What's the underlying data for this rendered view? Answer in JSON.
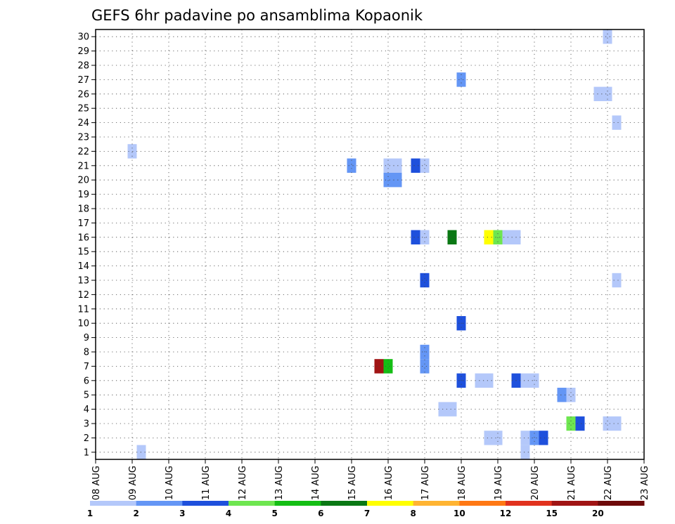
{
  "chart_data": {
    "type": "heatmap",
    "title": "GEFS 6hr padavine po ansamblima Kopaonik",
    "xlabel": "",
    "ylabel": "",
    "x_ticks": [
      "08 AUG",
      "09 AUG",
      "10 AUG",
      "11 AUG",
      "12 AUG",
      "13 AUG",
      "14 AUG",
      "15 AUG",
      "16 AUG",
      "17 AUG",
      "18 AUG",
      "19 AUG",
      "20 AUG",
      "21 AUG",
      "22 AUG",
      "23 AUG"
    ],
    "y_ticks": [
      1,
      2,
      3,
      4,
      5,
      6,
      7,
      8,
      9,
      10,
      11,
      12,
      13,
      14,
      15,
      16,
      17,
      18,
      19,
      20,
      21,
      22,
      23,
      24,
      25,
      26,
      27,
      28,
      29,
      30
    ],
    "ylim": [
      0.5,
      30.5
    ],
    "grid": true,
    "colorbar": {
      "labels": [
        "1",
        "2",
        "3",
        "4",
        "5",
        "6",
        "7",
        "8",
        "10",
        "12",
        "15",
        "20"
      ],
      "colors": [
        "#b4c8fa",
        "#6496f5",
        "#1e50dc",
        "#6ee650",
        "#14be14",
        "#0a7814",
        "#ffff00",
        "#ffb432",
        "#ff7814",
        "#e1321e",
        "#a01414",
        "#6e0a0a"
      ]
    },
    "cells": [
      {
        "date": "09 AUG 00",
        "member": 22,
        "color": "#b4c8fa"
      },
      {
        "date": "09 AUG 06",
        "member": 1,
        "color": "#b4c8fa"
      },
      {
        "date": "15 AUG 00",
        "member": 21,
        "color": "#6496f5"
      },
      {
        "date": "15 AUG 18",
        "member": 7,
        "color": "#a01414"
      },
      {
        "date": "16 AUG 00",
        "member": 7,
        "color": "#14be14"
      },
      {
        "date": "16 AUG 00",
        "member": 21,
        "color": "#b4c8fa"
      },
      {
        "date": "16 AUG 06",
        "member": 21,
        "color": "#b4c8fa"
      },
      {
        "date": "16 AUG 00",
        "member": 20,
        "color": "#6496f5"
      },
      {
        "date": "16 AUG 06",
        "member": 20,
        "color": "#6496f5"
      },
      {
        "date": "16 AUG 18",
        "member": 21,
        "color": "#1e50dc"
      },
      {
        "date": "17 AUG 00",
        "member": 21,
        "color": "#b4c8fa"
      },
      {
        "date": "16 AUG 18",
        "member": 16,
        "color": "#1e50dc"
      },
      {
        "date": "17 AUG 00",
        "member": 16,
        "color": "#b4c8fa"
      },
      {
        "date": "17 AUG 00",
        "member": 13,
        "color": "#1e50dc"
      },
      {
        "date": "17 AUG 00",
        "member": 8,
        "color": "#6496f5"
      },
      {
        "date": "17 AUG 00",
        "member": 7,
        "color": "#6496f5"
      },
      {
        "date": "17 AUG 18",
        "member": 16,
        "color": "#0a7814"
      },
      {
        "date": "17 AUG 12",
        "member": 4,
        "color": "#b4c8fa"
      },
      {
        "date": "17 AUG 18",
        "member": 4,
        "color": "#b4c8fa"
      },
      {
        "date": "18 AUG 00",
        "member": 27,
        "color": "#6496f5"
      },
      {
        "date": "18 AUG 00",
        "member": 10,
        "color": "#1e50dc"
      },
      {
        "date": "18 AUG 00",
        "member": 6,
        "color": "#1e50dc"
      },
      {
        "date": "18 AUG 12",
        "member": 6,
        "color": "#b4c8fa"
      },
      {
        "date": "18 AUG 18",
        "member": 6,
        "color": "#b4c8fa"
      },
      {
        "date": "18 AUG 18",
        "member": 16,
        "color": "#ffff00"
      },
      {
        "date": "19 AUG 00",
        "member": 16,
        "color": "#6ee650"
      },
      {
        "date": "19 AUG 06",
        "member": 16,
        "color": "#b4c8fa"
      },
      {
        "date": "19 AUG 12",
        "member": 16,
        "color": "#b4c8fa"
      },
      {
        "date": "18 AUG 18",
        "member": 2,
        "color": "#b4c8fa"
      },
      {
        "date": "19 AUG 00",
        "member": 2,
        "color": "#b4c8fa"
      },
      {
        "date": "19 AUG 12",
        "member": 6,
        "color": "#1e50dc"
      },
      {
        "date": "19 AUG 18",
        "member": 6,
        "color": "#b4c8fa"
      },
      {
        "date": "20 AUG 00",
        "member": 6,
        "color": "#b4c8fa"
      },
      {
        "date": "19 AUG 18",
        "member": 2,
        "color": "#b4c8fa"
      },
      {
        "date": "19 AUG 18",
        "member": 1,
        "color": "#b4c8fa"
      },
      {
        "date": "20 AUG 00",
        "member": 2,
        "color": "#6496f5"
      },
      {
        "date": "20 AUG 06",
        "member": 2,
        "color": "#1e50dc"
      },
      {
        "date": "20 AUG 18",
        "member": 5,
        "color": "#6496f5"
      },
      {
        "date": "21 AUG 00",
        "member": 5,
        "color": "#b4c8fa"
      },
      {
        "date": "21 AUG 00",
        "member": 3,
        "color": "#6ee650"
      },
      {
        "date": "21 AUG 06",
        "member": 3,
        "color": "#1e50dc"
      },
      {
        "date": "21 AUG 18",
        "member": 26,
        "color": "#b4c8fa"
      },
      {
        "date": "22 AUG 00",
        "member": 26,
        "color": "#b4c8fa"
      },
      {
        "date": "22 AUG 00",
        "member": 30,
        "color": "#b4c8fa"
      },
      {
        "date": "22 AUG 00",
        "member": 3,
        "color": "#b4c8fa"
      },
      {
        "date": "22 AUG 06",
        "member": 3,
        "color": "#b4c8fa"
      },
      {
        "date": "22 AUG 06",
        "member": 24,
        "color": "#b4c8fa"
      },
      {
        "date": "22 AUG 06",
        "member": 13,
        "color": "#b4c8fa"
      }
    ]
  }
}
